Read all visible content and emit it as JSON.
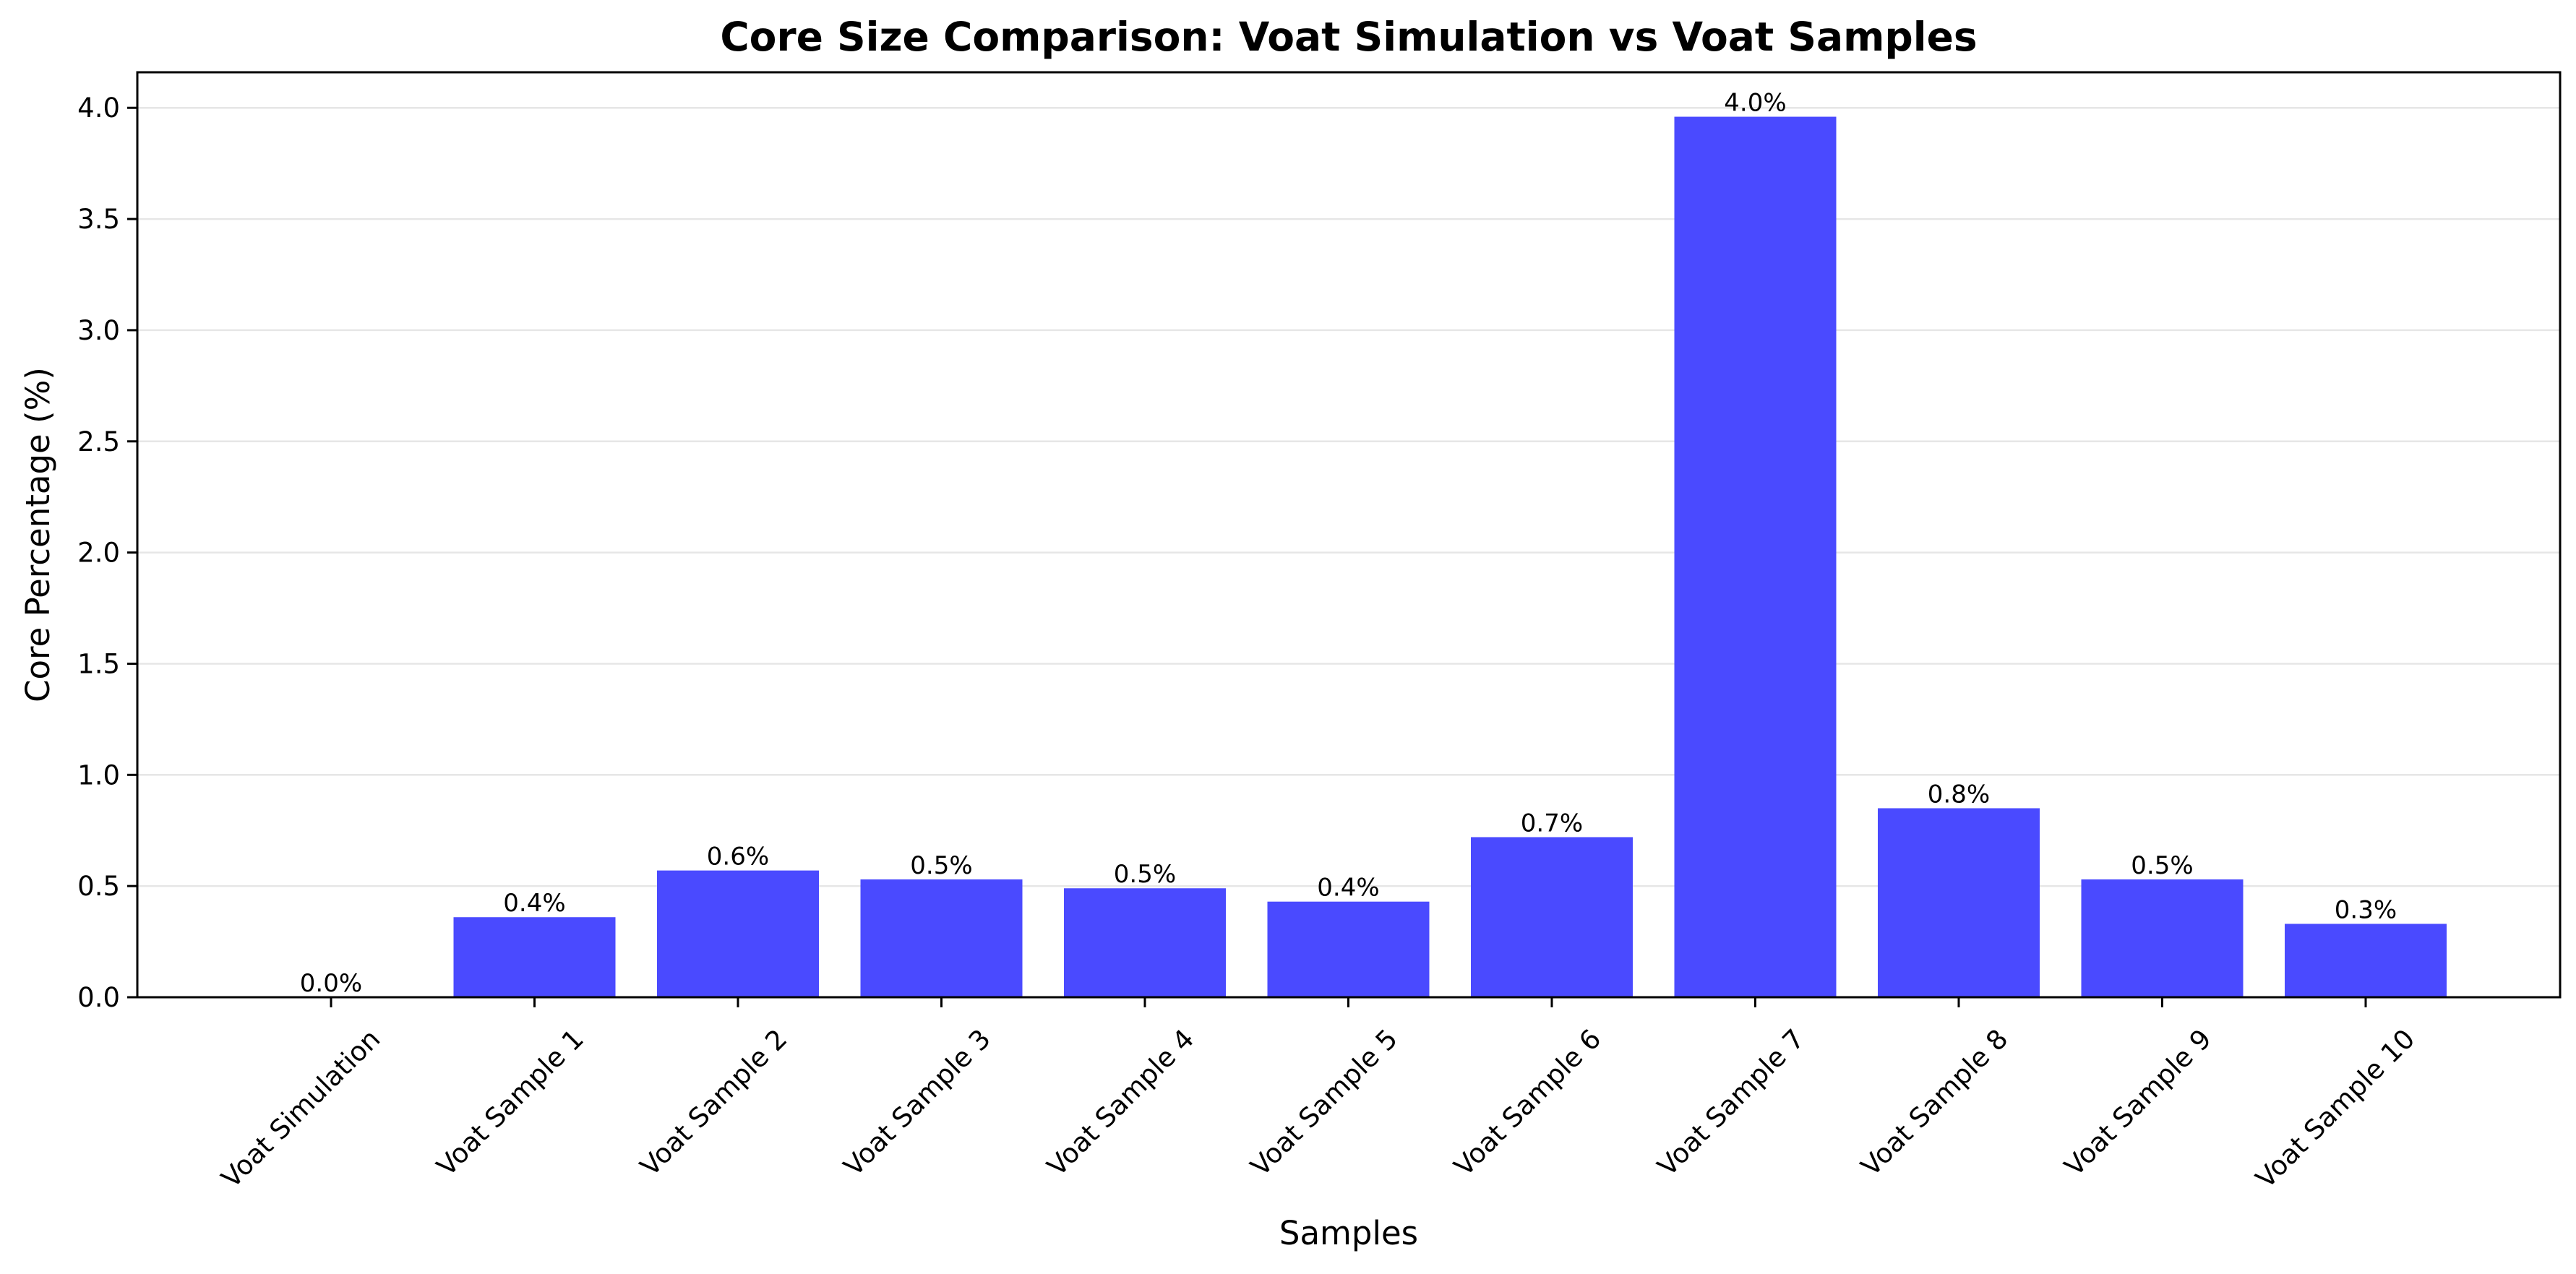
{
  "chart_data": {
    "type": "bar",
    "title": "Core Size Comparison: Voat Simulation vs Voat Samples",
    "xlabel": "Samples",
    "ylabel": "Core Percentage (%)",
    "categories": [
      "Voat Simulation",
      "Voat Sample 1",
      "Voat Sample 2",
      "Voat Sample 3",
      "Voat Sample 4",
      "Voat Sample 5",
      "Voat Sample 6",
      "Voat Sample 7",
      "Voat Sample 8",
      "Voat Sample 9",
      "Voat Sample 10"
    ],
    "values": [
      0.0,
      0.36,
      0.57,
      0.53,
      0.49,
      0.43,
      0.72,
      3.96,
      0.85,
      0.53,
      0.33
    ],
    "data_labels": [
      "0.0%",
      "0.4%",
      "0.6%",
      "0.5%",
      "0.5%",
      "0.4%",
      "0.7%",
      "4.0%",
      "0.8%",
      "0.5%",
      "0.3%"
    ],
    "yticks": [
      "0.0",
      "0.5",
      "1.0",
      "1.5",
      "2.0",
      "2.5",
      "3.0",
      "3.5",
      "4.0"
    ],
    "ylim": [
      0,
      4.16
    ],
    "grid": "horizontal",
    "bar_color": "#4a4aff"
  }
}
